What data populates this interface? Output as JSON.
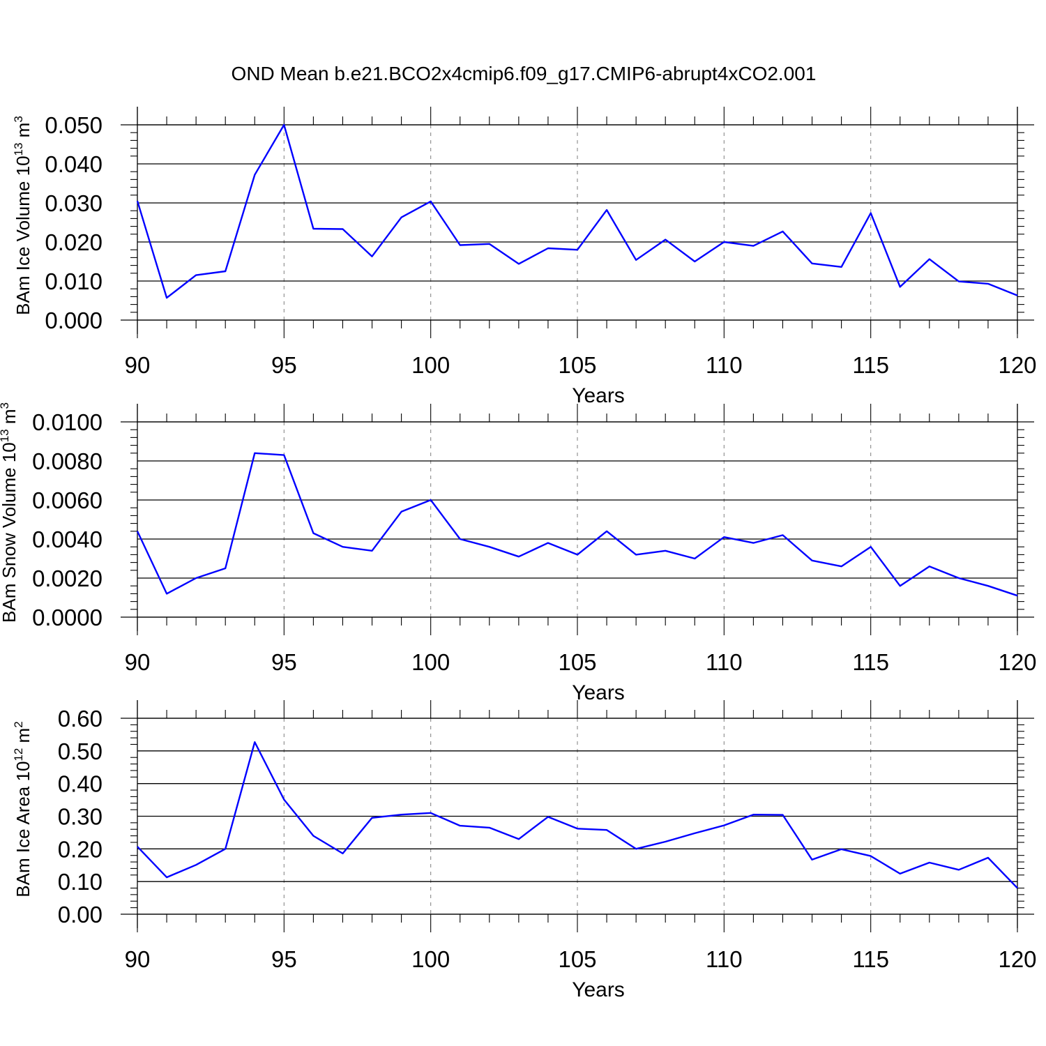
{
  "title": "OND Mean b.e21.BCO2x4cmip6.f09_g17.CMIP6-abrupt4xCO2.001",
  "colors": {
    "series": "#0000ff",
    "axis": "#000000",
    "grid": "#888888"
  },
  "chart_data": [
    {
      "type": "line",
      "xlabel": "Years",
      "ylabel_main": "BAm Ice Volume 10",
      "ylabel_exp": "13",
      "ylabel_unit": "m",
      "ylabel_unit_exp": "3",
      "xlim": [
        90,
        120
      ],
      "ylim": [
        0,
        0.05
      ],
      "x_ticks": [
        "90",
        "95",
        "100",
        "105",
        "110",
        "115",
        "120"
      ],
      "y_ticks": [
        "0.000",
        "0.010",
        "0.020",
        "0.030",
        "0.040",
        "0.050"
      ],
      "series": [
        {
          "x": [
            90,
            91,
            92,
            93,
            94,
            95,
            96,
            97,
            98,
            99,
            100,
            101,
            102,
            103,
            104,
            105,
            106,
            107,
            108,
            109,
            110,
            111,
            112,
            113,
            114,
            115,
            116,
            117,
            118,
            119,
            120
          ],
          "values": [
            0.0305,
            0.0057,
            0.0115,
            0.0125,
            0.0372,
            0.05,
            0.0234,
            0.0233,
            0.0163,
            0.0263,
            0.0304,
            0.0192,
            0.0195,
            0.0144,
            0.0184,
            0.018,
            0.0282,
            0.0154,
            0.0206,
            0.015,
            0.02,
            0.019,
            0.0227,
            0.0145,
            0.0136,
            0.0274,
            0.0085,
            0.0156,
            0.0099,
            0.0093,
            0.0063
          ]
        }
      ]
    },
    {
      "type": "line",
      "xlabel": "Years",
      "ylabel_main": "BAm Snow Volume 10",
      "ylabel_exp": "13",
      "ylabel_unit": "m",
      "ylabel_unit_exp": "3",
      "xlim": [
        90,
        120
      ],
      "ylim": [
        0,
        0.01
      ],
      "x_ticks": [
        "90",
        "95",
        "100",
        "105",
        "110",
        "115",
        "120"
      ],
      "y_ticks": [
        "0.0000",
        "0.0020",
        "0.0040",
        "0.0060",
        "0.0080",
        "0.0100"
      ],
      "series": [
        {
          "x": [
            90,
            91,
            92,
            93,
            94,
            95,
            96,
            97,
            98,
            99,
            100,
            101,
            102,
            103,
            104,
            105,
            106,
            107,
            108,
            109,
            110,
            111,
            112,
            113,
            114,
            115,
            116,
            117,
            118,
            119,
            120
          ],
          "values": [
            0.0044,
            0.0012,
            0.002,
            0.0025,
            0.0084,
            0.0083,
            0.0043,
            0.0036,
            0.0034,
            0.0054,
            0.006,
            0.004,
            0.0036,
            0.0031,
            0.0038,
            0.0032,
            0.0044,
            0.0032,
            0.0034,
            0.003,
            0.0041,
            0.0038,
            0.0042,
            0.0029,
            0.0026,
            0.0036,
            0.0016,
            0.0026,
            0.002,
            0.0016,
            0.0011
          ]
        }
      ]
    },
    {
      "type": "line",
      "xlabel": "Years",
      "ylabel_main": "BAm Ice Area 10",
      "ylabel_exp": "12",
      "ylabel_unit": "m",
      "ylabel_unit_exp": "2",
      "xlim": [
        90,
        120
      ],
      "ylim": [
        0,
        0.6
      ],
      "x_ticks": [
        "90",
        "95",
        "100",
        "105",
        "110",
        "115",
        "120"
      ],
      "y_ticks": [
        "0.00",
        "0.10",
        "0.20",
        "0.30",
        "0.40",
        "0.50",
        "0.60"
      ],
      "series": [
        {
          "x": [
            90,
            91,
            92,
            93,
            94,
            95,
            96,
            97,
            98,
            99,
            100,
            101,
            102,
            103,
            104,
            105,
            106,
            107,
            108,
            109,
            110,
            111,
            112,
            113,
            114,
            115,
            116,
            117,
            118,
            119,
            120
          ],
          "values": [
            0.207,
            0.113,
            0.151,
            0.2,
            0.527,
            0.351,
            0.24,
            0.186,
            0.295,
            0.305,
            0.31,
            0.271,
            0.265,
            0.23,
            0.298,
            0.262,
            0.258,
            0.2,
            0.222,
            0.248,
            0.272,
            0.305,
            0.304,
            0.167,
            0.199,
            0.178,
            0.124,
            0.158,
            0.136,
            0.173,
            0.08
          ]
        }
      ]
    }
  ]
}
